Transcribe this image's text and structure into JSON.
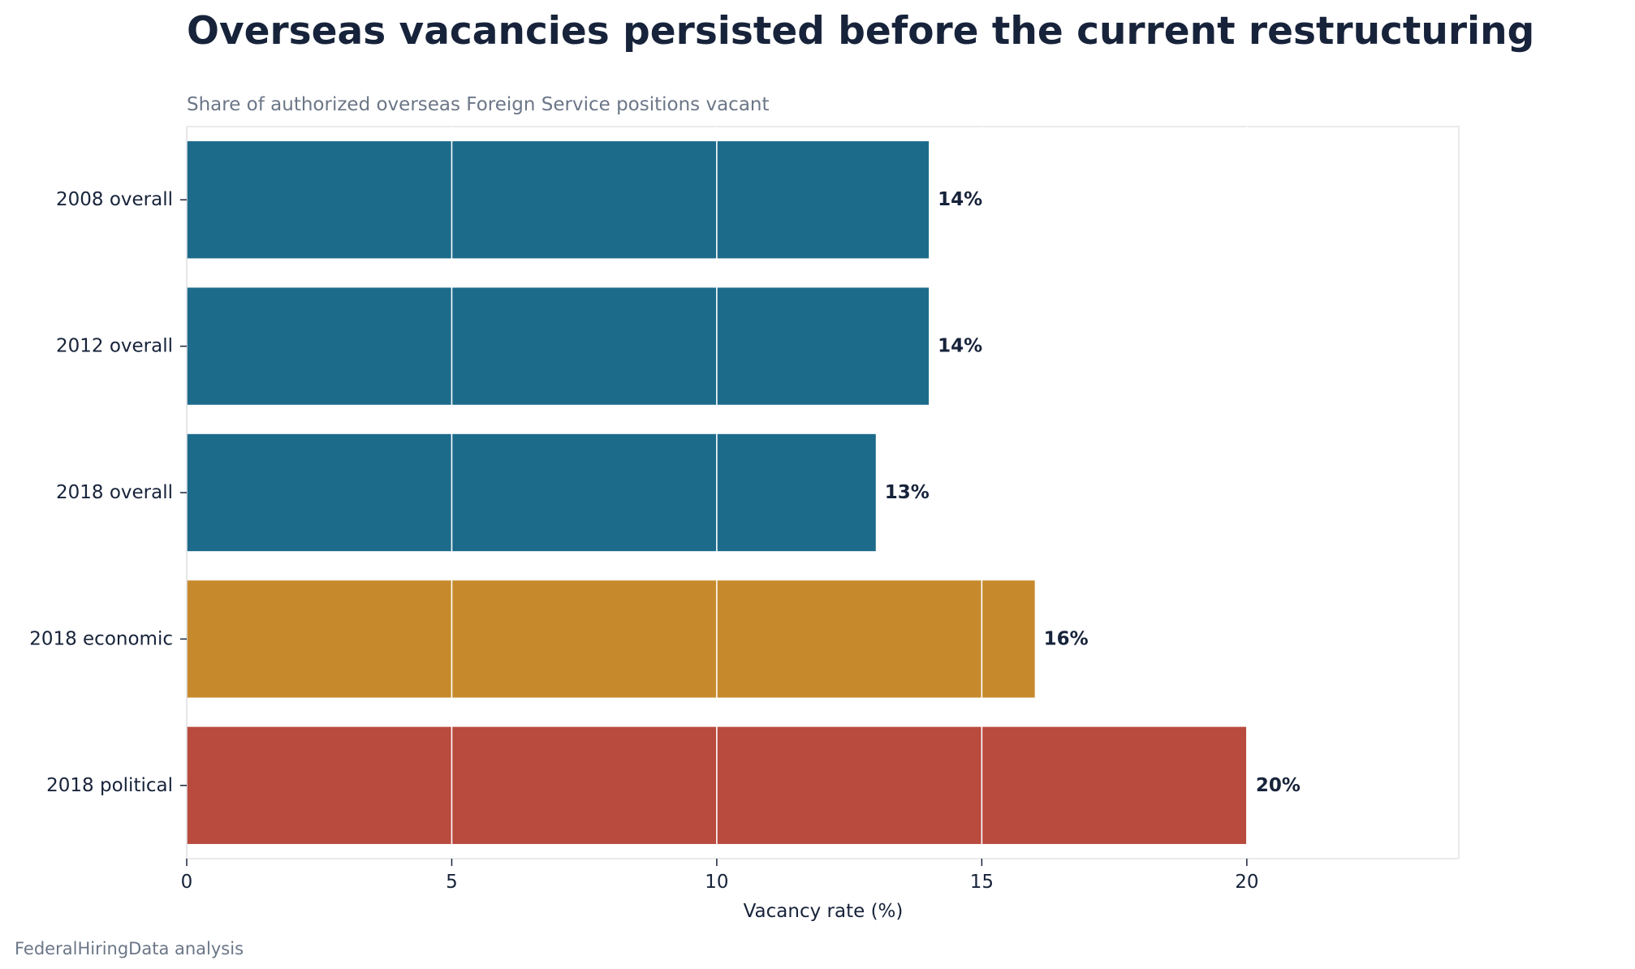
{
  "chart_data": {
    "type": "bar",
    "orientation": "horizontal",
    "title": "Overseas vacancies persisted before the current restructuring",
    "subtitle": "Share of authorized overseas Foreign Service positions vacant",
    "xlabel": "Vacancy rate (%)",
    "ylabel": "",
    "xlim": [
      0,
      24
    ],
    "xticks": [
      0,
      5,
      10,
      15,
      20
    ],
    "categories": [
      "2008 overall",
      "2012 overall",
      "2018 overall",
      "2018 economic",
      "2018 political"
    ],
    "values": [
      14,
      14,
      13,
      16,
      20
    ],
    "data_labels": [
      "14%",
      "14%",
      "13%",
      "16%",
      "20%"
    ],
    "bar_colors": [
      "#1c6b8b",
      "#1c6b8b",
      "#1c6b8b",
      "#c68a2d",
      "#b84a3e"
    ],
    "grid": "vertical",
    "source": "FederalHiringData analysis"
  }
}
